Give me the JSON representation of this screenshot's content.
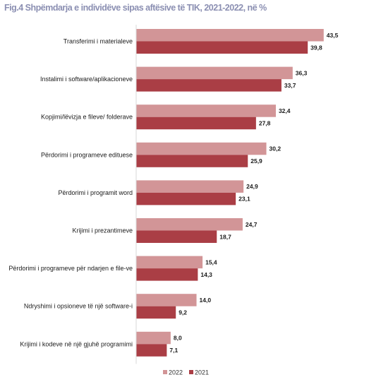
{
  "title": "Fig.4 Shpëmdarja e individëve sipas aftësive të TIK, 2021-2022, në %",
  "colors": {
    "s2022": "#d29597",
    "s2021": "#aa3e45",
    "axis": "#d9d9d9"
  },
  "chart_data": {
    "type": "bar",
    "orientation": "horizontal",
    "title": "Fig.4 Shpëmdarja e individëve sipas aftësive të TIK, 2021-2022, në %",
    "xlabel": "",
    "ylabel": "",
    "xlim": [
      0,
      50
    ],
    "grid": false,
    "legend": "bottom",
    "categories": [
      "Transferimi i materialeve",
      "Instalimi i software/aplikacioneve",
      "Kopjimi/lëvizja e fileve/ folderave",
      "Përdorimi i programeve edituese",
      "Përdorimi i programit word",
      "Krijimi i prezantimeve",
      "Përdorimi i programeve për ndarjen e file-ve",
      "Ndryshimi i opsioneve të një software-i",
      "Krijimi i kodeve në një gjuhë programimi"
    ],
    "series": [
      {
        "name": "2022",
        "values": [
          43.5,
          36.3,
          32.4,
          30.2,
          24.9,
          24.7,
          15.4,
          14.0,
          8.0
        ],
        "labels": [
          "43,5",
          "36,3",
          "32,4",
          "30,2",
          "24,9",
          "24,7",
          "15,4",
          "14,0",
          "8,0"
        ]
      },
      {
        "name": "2021",
        "values": [
          39.8,
          33.7,
          27.8,
          25.9,
          23.1,
          18.7,
          14.3,
          9.2,
          7.1
        ],
        "labels": [
          "39,8",
          "33,7",
          "27,8",
          "25,9",
          "23,1",
          "18,7",
          "14,3",
          "9,2",
          "7,1"
        ]
      }
    ]
  }
}
